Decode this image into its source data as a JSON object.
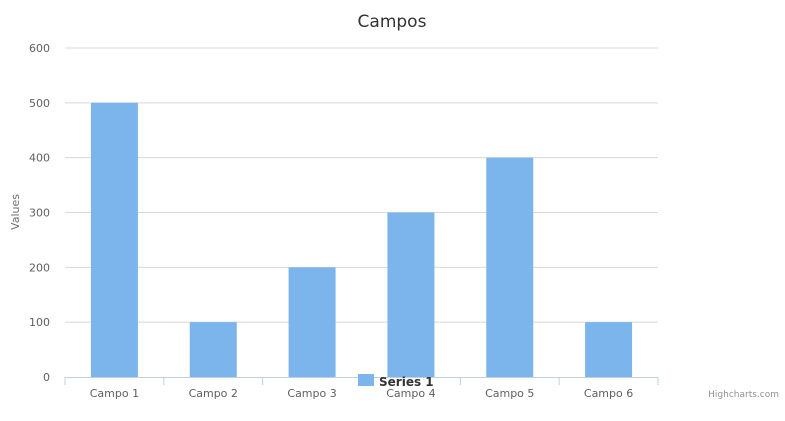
{
  "chart_data": {
    "type": "bar",
    "title": "Campos",
    "xlabel": "",
    "ylabel": "Values",
    "categories": [
      "Campo 1",
      "Campo 2",
      "Campo 3",
      "Campo 4",
      "Campo 5",
      "Campo 6"
    ],
    "series": [
      {
        "name": "Series 1",
        "values": [
          500,
          100,
          200,
          300,
          400,
          100
        ],
        "color": "#7cb5ec"
      }
    ],
    "ylim": [
      0,
      600
    ],
    "yticks": [
      0,
      100,
      200,
      300,
      400,
      500,
      600
    ],
    "grid": true,
    "legend_position": "bottom-center"
  },
  "credits": "Highcharts.com",
  "colors": {
    "gridline": "#d8d8d8",
    "axis": "#c0d0e0",
    "bar": "#7cb5ec"
  }
}
